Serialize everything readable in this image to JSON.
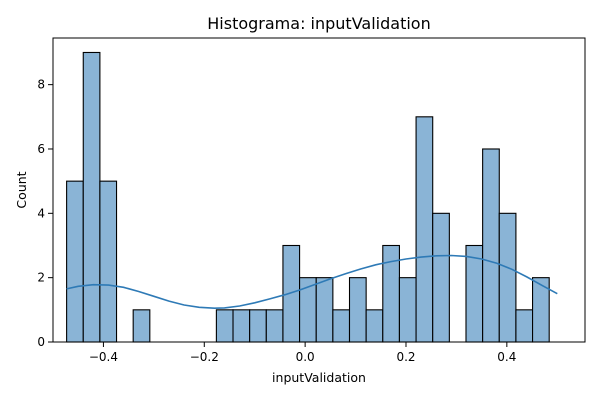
{
  "chart_data": {
    "type": "bar",
    "title": "Histograma: inputValidation",
    "xlabel": "inputValidation",
    "ylabel": "Count",
    "xlim": [
      -0.5,
      0.555
    ],
    "ylim": [
      0,
      9.45
    ],
    "x_ticks": [
      -0.4,
      -0.2,
      0.0,
      0.2,
      0.4
    ],
    "x_tick_labels": [
      "−0.4",
      "−0.2",
      "0.0",
      "0.2",
      "0.4"
    ],
    "y_ticks": [
      0,
      2,
      4,
      6,
      8
    ],
    "y_tick_labels": [
      "0",
      "2",
      "4",
      "6",
      "8"
    ],
    "bin_start": -0.473,
    "bin_width": 0.033,
    "counts": [
      5,
      9,
      5,
      0,
      1,
      0,
      0,
      0,
      0,
      1,
      1,
      1,
      1,
      3,
      2,
      2,
      1,
      2,
      1,
      3,
      2,
      7,
      4,
      0,
      3,
      6,
      4,
      1,
      2
    ],
    "kde_curve": {
      "x": [
        -0.473,
        -0.45,
        -0.42,
        -0.39,
        -0.36,
        -0.33,
        -0.3,
        -0.27,
        -0.24,
        -0.21,
        -0.18,
        -0.16,
        -0.13,
        -0.1,
        -0.07,
        -0.04,
        -0.01,
        0.02,
        0.05,
        0.08,
        0.11,
        0.14,
        0.17,
        0.2,
        0.23,
        0.26,
        0.29,
        0.32,
        0.35,
        0.38,
        0.41,
        0.44,
        0.47,
        0.5
      ],
      "y": [
        1.65,
        1.73,
        1.78,
        1.77,
        1.7,
        1.57,
        1.42,
        1.27,
        1.15,
        1.08,
        1.05,
        1.06,
        1.12,
        1.22,
        1.34,
        1.47,
        1.62,
        1.79,
        1.96,
        2.12,
        2.27,
        2.4,
        2.5,
        2.58,
        2.64,
        2.68,
        2.69,
        2.66,
        2.58,
        2.45,
        2.26,
        2.02,
        1.76,
        1.5
      ]
    },
    "grid": false,
    "legend": "none"
  }
}
